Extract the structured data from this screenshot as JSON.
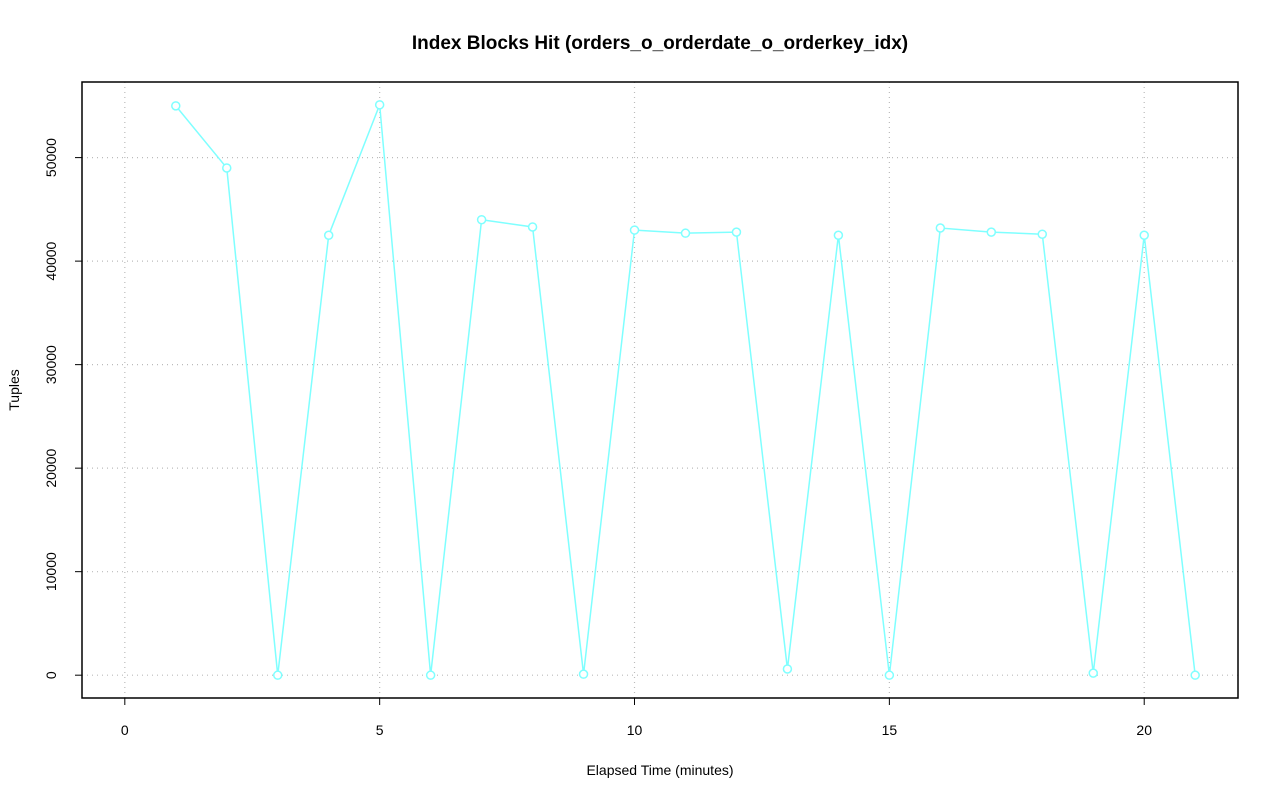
{
  "chart_data": {
    "type": "line",
    "title": "Index Blocks Hit (orders_o_orderdate_o_orderkey_idx)",
    "xlabel": "Elapsed Time (minutes)",
    "ylabel": "Tuples",
    "x": [
      1,
      2,
      3,
      4,
      5,
      6,
      7,
      8,
      9,
      10,
      11,
      12,
      13,
      14,
      15,
      16,
      17,
      18,
      19,
      20,
      21
    ],
    "series": [
      {
        "name": "orders_o_orderdate_o_orderkey_idx",
        "color": "#7fffff",
        "values": [
          55000,
          49000,
          0,
          42500,
          55100,
          0,
          44000,
          43300,
          100,
          43000,
          42700,
          42800,
          600,
          42500,
          0,
          43200,
          42800,
          42600,
          200,
          42500,
          0
        ]
      }
    ],
    "xlim": [
      -0.84,
      21.84
    ],
    "xticks": [
      0,
      5,
      10,
      15,
      20
    ],
    "ylim": [
      -2204,
      57304
    ],
    "yticks": [
      0,
      10000,
      20000,
      30000,
      40000,
      50000
    ],
    "grid": true
  }
}
